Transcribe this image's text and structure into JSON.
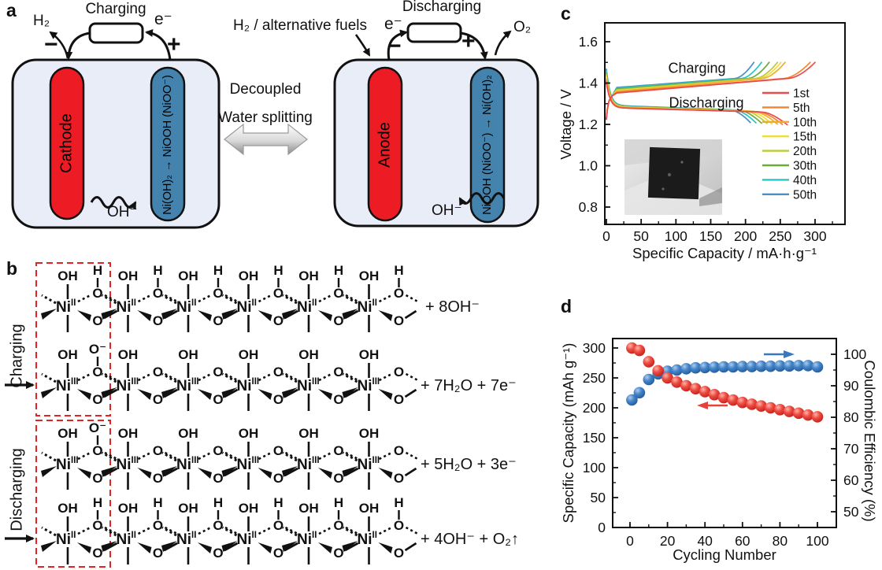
{
  "figure_labels": {
    "a": "a",
    "b": "b",
    "c": "c",
    "d": "d"
  },
  "panel_a": {
    "left_cell": {
      "title": "Charging",
      "gas": "H₂",
      "electron": "e⁻",
      "minus": "−",
      "plus": "+",
      "red_electrode": "Cathode",
      "blue_electrode": "Ni(OH)₂ → NiOOH (NiOO⁻)",
      "ion": "OH⁻"
    },
    "center": {
      "line1": "Decoupled",
      "line2": "Water splitting"
    },
    "right_cell": {
      "title": "Discharging",
      "fuel": "H₂ / alternative fuels",
      "electron": "e⁻",
      "minus": "−",
      "plus": "+",
      "red_electrode": "Anode",
      "blue_electrode": "NiOOH (NiOO⁻) → Ni(OH)₂",
      "gas": "O₂",
      "ion": "OH⁻"
    },
    "colors": {
      "electrode_red": "#ed1c24",
      "electrode_blue": "#4483ae",
      "cell_fill": "#e9edf7"
    }
  },
  "panel_b": {
    "charging_label": "Charging",
    "discharging_label": "Discharging",
    "atom": "Ni",
    "ligands": {
      "hydroxide": "OH",
      "hydrogen": "H",
      "oxygen": "O",
      "superoxide": "O⁻"
    },
    "units_per_row": 6,
    "box_color": "#e02424",
    "rows": [
      {
        "oxidation": "II",
        "bridge_top_h": true,
        "first_unit_top": "H",
        "equation": "+ 8OH⁻"
      },
      {
        "oxidation": "III",
        "bridge_top_h": false,
        "first_unit_top": "O⁻",
        "equation": "+ 7H₂O + 7e⁻"
      },
      {
        "oxidation": "III",
        "bridge_top_h": false,
        "first_unit_top": "O⁻",
        "equation": "+ 5H₂O  + 3e⁻"
      },
      {
        "oxidation": "II",
        "bridge_top_h": true,
        "first_unit_top": "H",
        "equation": "+ 4OH⁻  + O₂↑"
      }
    ]
  },
  "chart_data": [
    {
      "id": "panel_c",
      "type": "line",
      "xlabel": "Specific Capacity / mA·h·g⁻¹",
      "ylabel": "Voltage / V",
      "xlim": [
        0,
        343
      ],
      "ylim": [
        0.72,
        1.69
      ],
      "xticks": [
        0,
        50,
        100,
        150,
        200,
        250,
        300
      ],
      "yticks": [
        0.8,
        1.0,
        1.2,
        1.4,
        1.6
      ],
      "annotations": {
        "charge": "Charging",
        "discharge": "Discharging"
      },
      "legend_position": "right-inside",
      "charge_plateau_V": [
        1.35,
        1.38
      ],
      "charge_cutoff_V": 1.5,
      "discharge_plateau_V": [
        1.27,
        1.28
      ],
      "discharge_cutoff_V": 1.2,
      "series": [
        {
          "name": "1st",
          "color": "#e94b4e",
          "charge_end_capacity": 300,
          "discharge_end_capacity": 260
        },
        {
          "name": "5th",
          "color": "#f2852f",
          "charge_end_capacity": 293,
          "discharge_end_capacity": 253
        },
        {
          "name": "10th",
          "color": "#f0ac2e",
          "charge_end_capacity": 257,
          "discharge_end_capacity": 246
        },
        {
          "name": "15th",
          "color": "#ecdf3d",
          "charge_end_capacity": 251,
          "discharge_end_capacity": 238
        },
        {
          "name": "20th",
          "color": "#bcca33",
          "charge_end_capacity": 246,
          "discharge_end_capacity": 231
        },
        {
          "name": "30th",
          "color": "#6cac39",
          "charge_end_capacity": 234,
          "discharge_end_capacity": 223
        },
        {
          "name": "40th",
          "color": "#27c8c4",
          "charge_end_capacity": 223,
          "discharge_end_capacity": 215
        },
        {
          "name": "50th",
          "color": "#4a8fc6",
          "charge_end_capacity": 212,
          "discharge_end_capacity": 207
        }
      ]
    },
    {
      "id": "panel_d",
      "type": "scatter",
      "xlabel": "Cycling Number",
      "ylabel_left": "Specific Capacity (mAh g⁻¹)",
      "ylabel_right": "Coulombic Efficiency (%)",
      "xlim": [
        -10,
        110
      ],
      "xticks": [
        0,
        20,
        40,
        60,
        80,
        100
      ],
      "yticks_left": [
        0,
        50,
        100,
        150,
        200,
        250,
        300
      ],
      "yticks_right": [
        50,
        60,
        70,
        80,
        90,
        100
      ],
      "x": [
        1,
        5,
        10,
        15,
        20,
        25,
        30,
        35,
        40,
        45,
        50,
        55,
        60,
        65,
        70,
        75,
        80,
        85,
        90,
        95,
        100
      ],
      "series": [
        {
          "name": "Specific Capacity",
          "axis": "left",
          "color": "#e8403a",
          "values": [
            300,
            296,
            277,
            262,
            250,
            243,
            237,
            232,
            227,
            222,
            217,
            213,
            209,
            206,
            203,
            200,
            197,
            194,
            191,
            188,
            185
          ]
        },
        {
          "name": "Coulombic Efficiency",
          "axis": "right",
          "color": "#3679c0",
          "values": [
            85.5,
            87.8,
            92,
            93.8,
            94.6,
            95,
            95.4,
            95.7,
            95.8,
            95.9,
            96,
            96,
            96.1,
            96.1,
            96.2,
            96.2,
            96.3,
            96.3,
            96.4,
            96.4,
            96
          ]
        }
      ]
    }
  ]
}
